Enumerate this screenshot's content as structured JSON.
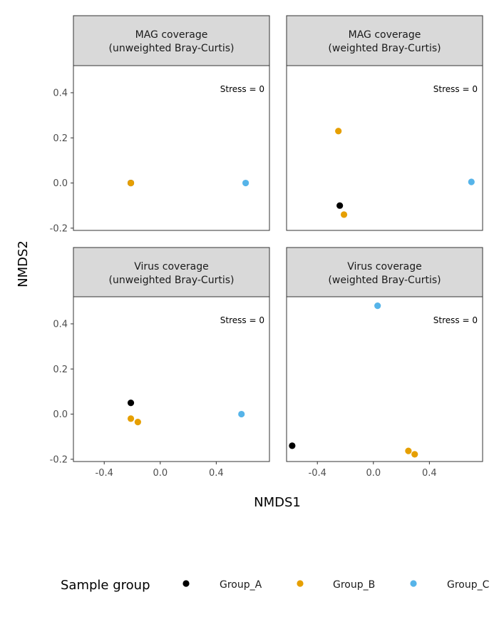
{
  "chart_data": {
    "type": "scatter",
    "xlabel": "NMDS1",
    "ylabel": "NMDS2",
    "xlim": [
      -0.62,
      0.78
    ],
    "ylim": [
      -0.21,
      0.52
    ],
    "x_ticks": [
      -0.4,
      0.0,
      0.4
    ],
    "x_tick_labels": [
      "-0.4",
      "0.0",
      "0.4"
    ],
    "y_ticks": [
      -0.2,
      0.0,
      0.2,
      0.4
    ],
    "y_tick_labels": [
      "-0.2",
      "0.0",
      "0.2",
      "0.4"
    ],
    "grid": false,
    "legend": {
      "title": "Sample group",
      "position": "bottom",
      "entries": [
        {
          "name": "Group_A",
          "color": "#000000"
        },
        {
          "name": "Group_B",
          "color": "#E69F00"
        },
        {
          "name": "Group_C",
          "color": "#56B4E9"
        }
      ]
    },
    "panels": [
      {
        "title_line1": "MAG coverage",
        "title_line2": "(unweighted Bray-Curtis)",
        "annotation": "Stress = 0",
        "points": [
          {
            "group": "Group_A",
            "x": -0.21,
            "y": 0.0
          },
          {
            "group": "Group_B",
            "x": -0.21,
            "y": 0.0
          },
          {
            "group": "Group_C",
            "x": 0.61,
            "y": 0.0
          }
        ]
      },
      {
        "title_line1": "MAG coverage",
        "title_line2": "(weighted Bray-Curtis)",
        "annotation": "Stress = 0",
        "points": [
          {
            "group": "Group_B",
            "x": -0.25,
            "y": 0.23
          },
          {
            "group": "Group_A",
            "x": -0.24,
            "y": -0.1
          },
          {
            "group": "Group_B",
            "x": -0.21,
            "y": -0.14
          },
          {
            "group": "Group_C",
            "x": 0.7,
            "y": 0.005
          }
        ]
      },
      {
        "title_line1": "Virus coverage",
        "title_line2": "(unweighted Bray-Curtis)",
        "annotation": "Stress = 0",
        "points": [
          {
            "group": "Group_A",
            "x": -0.21,
            "y": 0.05
          },
          {
            "group": "Group_B",
            "x": -0.21,
            "y": -0.02
          },
          {
            "group": "Group_B",
            "x": -0.16,
            "y": -0.035
          },
          {
            "group": "Group_C",
            "x": 0.58,
            "y": 0.0
          }
        ]
      },
      {
        "title_line1": "Virus coverage",
        "title_line2": "(weighted Bray-Curtis)",
        "annotation": "Stress = 0",
        "points": [
          {
            "group": "Group_C",
            "x": 0.03,
            "y": 0.48
          },
          {
            "group": "Group_A",
            "x": -0.58,
            "y": -0.14
          },
          {
            "group": "Group_B",
            "x": 0.25,
            "y": -0.163
          },
          {
            "group": "Group_B",
            "x": 0.295,
            "y": -0.178
          }
        ]
      }
    ]
  }
}
